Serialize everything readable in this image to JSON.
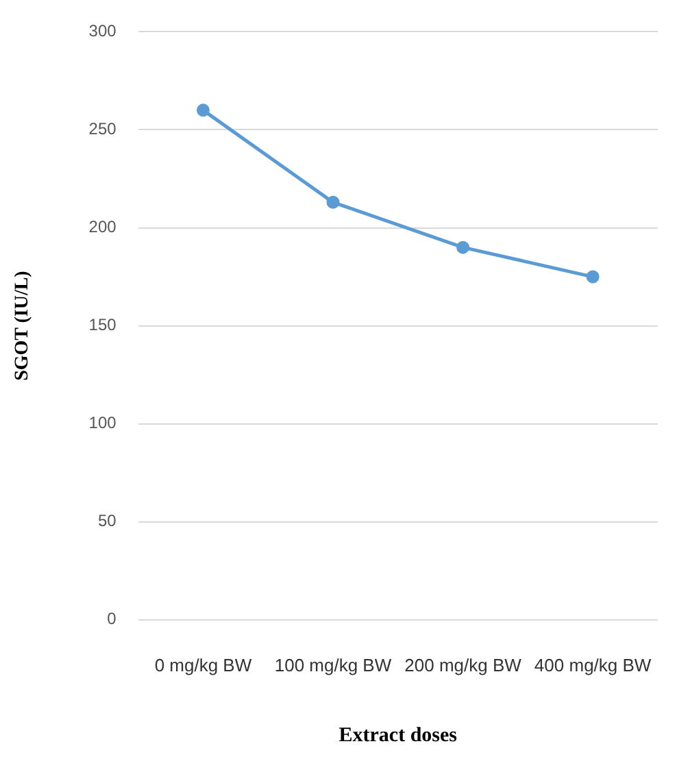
{
  "chart_data": {
    "type": "line",
    "xlabel": "Extract doses",
    "ylabel": "SGOT (IU/L)",
    "categories": [
      "0 mg/kg BW",
      "100 mg/kg BW",
      "200 mg/kg BW",
      "400 mg/kg BW"
    ],
    "series": [
      {
        "color": "#5b9bd5",
        "values": [
          260,
          213,
          190,
          175
        ]
      }
    ],
    "ylim": [
      0,
      300
    ],
    "yticks": [
      0,
      50,
      100,
      150,
      200,
      250,
      300
    ],
    "grid": "y",
    "legend": false,
    "marker": "circle",
    "line_style": "solid"
  }
}
